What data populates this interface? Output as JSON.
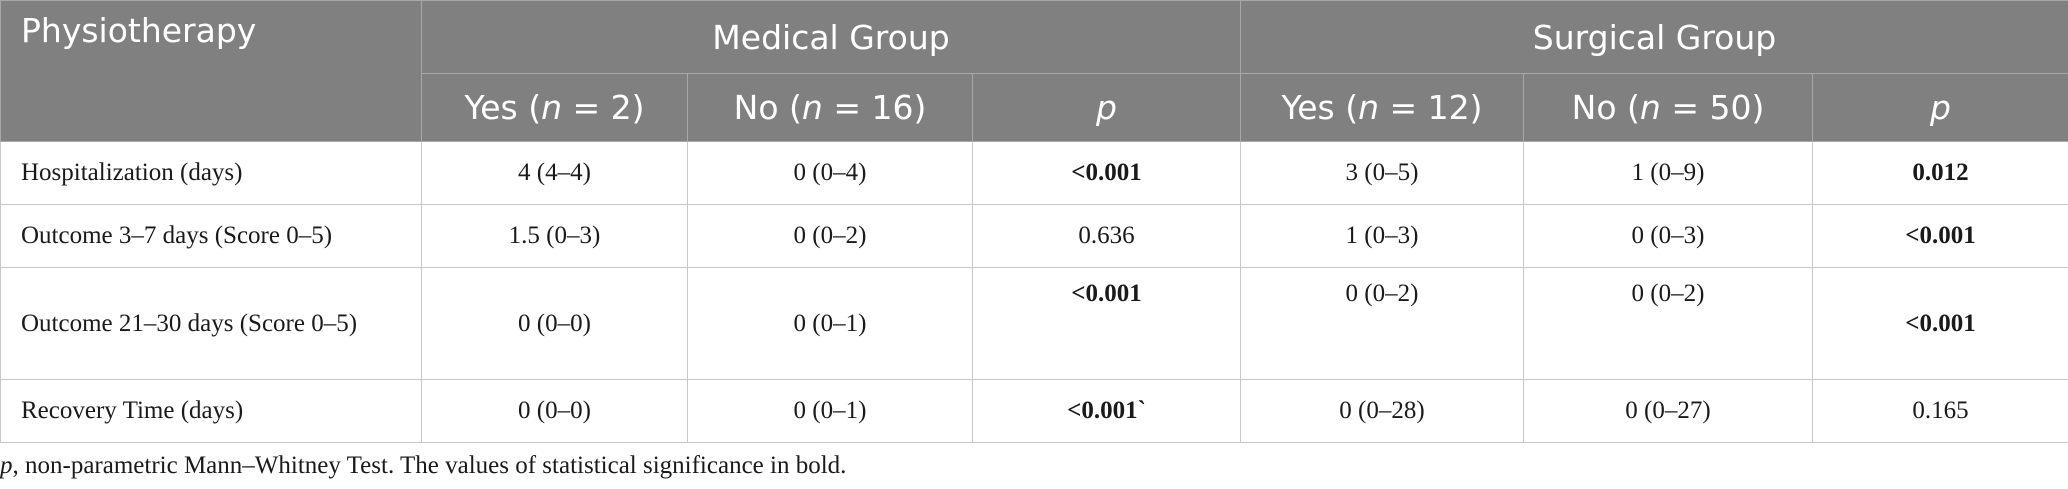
{
  "table": {
    "header": {
      "corner": "Physiotherapy",
      "groups": [
        "Medical Group",
        "Surgical Group"
      ],
      "columns": [
        {
          "prefix": "Yes (",
          "italic": "n",
          "suffix": " = 2)"
        },
        {
          "prefix": "No (",
          "italic": "n",
          "suffix": " = 16)"
        },
        {
          "prefix": "",
          "italic": "p",
          "suffix": ""
        },
        {
          "prefix": "Yes (",
          "italic": "n",
          "suffix": " = 12)"
        },
        {
          "prefix": "No (",
          "italic": "n",
          "suffix": " = 50)"
        },
        {
          "prefix": "",
          "italic": "p",
          "suffix": ""
        }
      ]
    },
    "rows": [
      {
        "label": "Hospitalization (days)",
        "cells": [
          {
            "text": "4 (4–4)"
          },
          {
            "text": "0 (0–4)"
          },
          {
            "text": "<0.001",
            "bold": true
          },
          {
            "text": "3 (0–5)"
          },
          {
            "text": "1 (0–9)"
          },
          {
            "text": "0.012",
            "bold": true
          }
        ]
      },
      {
        "label": "Outcome 3–7 days (Score 0–5)",
        "cells": [
          {
            "text": "1.5 (0–3)"
          },
          {
            "text": "0 (0–2)"
          },
          {
            "text": "0.636"
          },
          {
            "text": "1 (0–3)"
          },
          {
            "text": "0 (0–3)"
          },
          {
            "text": "<0.001",
            "bold": true
          }
        ]
      },
      {
        "label": "Outcome 21–30 days (Score 0–5)",
        "cells": [
          {
            "text": "0 (0–0)"
          },
          {
            "text": "0 (0–1)"
          },
          {
            "text": "<0.001",
            "bold": true,
            "top": true
          },
          {
            "text": "0 (0–2)",
            "top": true
          },
          {
            "text": "0 (0–2)",
            "top": true
          },
          {
            "text": "<0.001",
            "bold": true
          }
        ]
      },
      {
        "label": "Recovery Time (days)",
        "cells": [
          {
            "text": "0 (0–0)"
          },
          {
            "text": "0 (0–1)"
          },
          {
            "text": "<0.001`",
            "bold": true
          },
          {
            "text": "0 (0–28)"
          },
          {
            "text": "0 (0–27)"
          },
          {
            "text": "0.165"
          }
        ]
      }
    ]
  },
  "footnote": {
    "italic": "p",
    "text": ", non-parametric Mann–Whitney Test. The values of statistical significance in bold."
  }
}
